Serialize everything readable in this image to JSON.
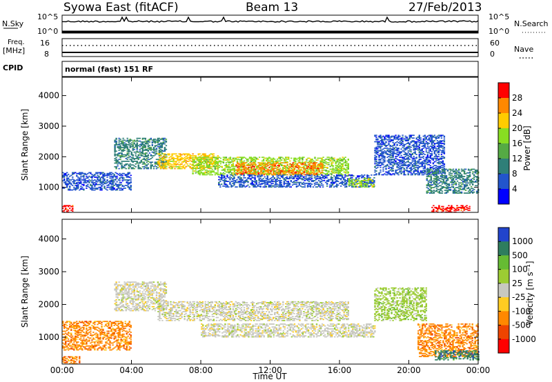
{
  "header": {
    "title": "Syowa East (fitACF)",
    "beam": "Beam 13",
    "date": "27/Feb/2013"
  },
  "status_panels": {
    "nsky_label": "N.Sky",
    "nsky_top": "10^5",
    "nsky_bottom": "10^0",
    "nsearch_label": "N.Search",
    "nsearch_top": "10^5",
    "nsearch_bottom": "10^0",
    "freq_label": "Freq.",
    "freq_unit": "[MHz]",
    "freq_top": "16",
    "freq_bottom": "8",
    "nave_label": "Nave",
    "nave_top": "60",
    "nave_bottom": "0",
    "cpid_label": "CPID",
    "cpid_value": "normal (fast) 151 RF"
  },
  "chart_data": [
    {
      "type": "heatmap",
      "name": "power",
      "ylabel": "Slant Range [km]",
      "ylim": [
        180,
        4600
      ],
      "yticks": [
        "1000",
        "2000",
        "3000",
        "4000"
      ],
      "ytick_values": [
        1000,
        2000,
        3000,
        4000
      ],
      "colorbar_label": "Power [dB]",
      "colorbar_ticks": [
        "4",
        "8",
        "12",
        "16",
        "20",
        "24",
        "28"
      ],
      "colorbar_colors": [
        "#0000ff",
        "#2255cc",
        "#2f7f78",
        "#55aa44",
        "#88dd22",
        "#ffcc00",
        "#ff8800",
        "#ff0000"
      ],
      "bands": [
        {
          "t0": 0.0,
          "t1": 4.0,
          "r0": 900,
          "r1": 1500,
          "level": 1
        },
        {
          "t0": 3.0,
          "t1": 6.0,
          "r0": 1600,
          "r1": 2600,
          "level": 2
        },
        {
          "t0": 5.5,
          "t1": 9.0,
          "r0": 1600,
          "r1": 2100,
          "level": 5
        },
        {
          "t0": 7.5,
          "t1": 16.5,
          "r0": 1400,
          "r1": 2000,
          "level": 4
        },
        {
          "t0": 10.0,
          "t1": 15.0,
          "r0": 1400,
          "r1": 1800,
          "level": 6
        },
        {
          "t0": 9.0,
          "t1": 18.0,
          "r0": 1000,
          "r1": 1400,
          "level": 1
        },
        {
          "t0": 16.5,
          "t1": 18.0,
          "r0": 1000,
          "r1": 1300,
          "level": 4
        },
        {
          "t0": 18.0,
          "t1": 22.0,
          "r0": 1400,
          "r1": 2700,
          "level": 1
        },
        {
          "t0": 21.0,
          "t1": 24.0,
          "r0": 800,
          "r1": 1600,
          "level": 2
        },
        {
          "t0": 0.0,
          "t1": 0.6,
          "r0": 180,
          "r1": 400,
          "level": 7
        },
        {
          "t0": 21.3,
          "t1": 23.5,
          "r0": 180,
          "r1": 400,
          "level": 7
        }
      ]
    },
    {
      "type": "heatmap",
      "name": "velocity",
      "ylabel": "Slant Range [km]",
      "ylim": [
        180,
        4600
      ],
      "yticks": [
        "1000",
        "2000",
        "3000",
        "4000"
      ],
      "ytick_values": [
        1000,
        2000,
        3000,
        4000
      ],
      "xlabel": "Time UT",
      "xticks": [
        "00:00",
        "04:00",
        "08:00",
        "12:00",
        "16:00",
        "20:00",
        "00:00"
      ],
      "xtick_values": [
        0,
        4,
        8,
        12,
        16,
        20,
        24
      ],
      "xlim": [
        0,
        24
      ],
      "colorbar_label": "Velocity [m s⁻¹]",
      "colorbar_ticks": [
        "1000",
        "500",
        "100",
        "25",
        "-25",
        "-100",
        "-500",
        "-1000"
      ],
      "colorbar_colors": [
        "#2244cc",
        "#2e7d5e",
        "#66bb33",
        "#9ccc33",
        "#c8c8c0",
        "#ffcc22",
        "#ff8800",
        "#ee4400",
        "#ff0000"
      ],
      "bands": [
        {
          "t0": 0.0,
          "t1": 4.0,
          "r0": 600,
          "r1": 1500,
          "level": 6
        },
        {
          "t0": 3.0,
          "t1": 6.0,
          "r0": 1800,
          "r1": 2700,
          "level": 4
        },
        {
          "t0": 5.5,
          "t1": 16.5,
          "r0": 1500,
          "r1": 2100,
          "level": 4
        },
        {
          "t0": 8.0,
          "t1": 18.0,
          "r0": 1000,
          "r1": 1400,
          "level": 4
        },
        {
          "t0": 18.0,
          "t1": 21.0,
          "r0": 1500,
          "r1": 2500,
          "level": 3
        },
        {
          "t0": 20.5,
          "t1": 24.0,
          "r0": 400,
          "r1": 1400,
          "level": 6
        },
        {
          "t0": 21.5,
          "t1": 24.0,
          "r0": 300,
          "r1": 600,
          "level": 1
        },
        {
          "t0": 0.0,
          "t1": 1.0,
          "r0": 180,
          "r1": 400,
          "level": 6
        }
      ]
    }
  ],
  "xaxis": {
    "title": "Time UT",
    "ticks": [
      "00:00",
      "04:00",
      "08:00",
      "12:00",
      "16:00",
      "20:00",
      "00:00"
    ]
  }
}
